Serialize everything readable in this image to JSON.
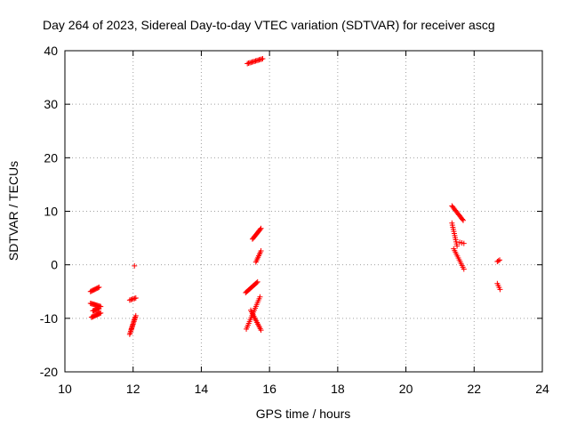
{
  "chart_data": {
    "type": "scatter",
    "title": "Day 264 of 2023, Sidereal Day-to-day VTEC variation (SDTVAR) for receiver ascg",
    "xlabel": "GPS time / hours",
    "ylabel": "SDTVAR / TECUs",
    "xlim": [
      10,
      24
    ],
    "ylim": [
      -20,
      40
    ],
    "xticks": [
      10,
      12,
      14,
      16,
      18,
      20,
      22,
      24
    ],
    "yticks": [
      -20,
      -10,
      0,
      10,
      20,
      30,
      40
    ],
    "grid": true,
    "marker": "+",
    "color": "#ff0000",
    "series": [
      {
        "name": "SDTVAR",
        "segments": [
          {
            "x0": 10.75,
            "x1": 11.0,
            "y0": -5.0,
            "y1": -4.2,
            "n": 10
          },
          {
            "x0": 10.75,
            "x1": 11.05,
            "y0": -7.2,
            "y1": -7.8,
            "n": 12
          },
          {
            "x0": 10.78,
            "x1": 11.05,
            "y0": -9.8,
            "y1": -9.0,
            "n": 12
          },
          {
            "x0": 10.82,
            "x1": 11.0,
            "y0": -8.6,
            "y1": -8.2,
            "n": 8
          },
          {
            "x0": 11.9,
            "x1": 12.08,
            "y0": -6.6,
            "y1": -6.2,
            "n": 6
          },
          {
            "x0": 11.9,
            "x1": 12.08,
            "y0": -13.0,
            "y1": -9.5,
            "n": 14
          },
          {
            "x0": 11.95,
            "x1": 12.05,
            "y0": -12.0,
            "y1": -10.0,
            "n": 8
          },
          {
            "x0": 12.04,
            "x1": 12.04,
            "y0": -0.2,
            "y1": -0.2,
            "n": 1
          },
          {
            "x0": 15.35,
            "x1": 15.8,
            "y0": 37.6,
            "y1": 38.5,
            "n": 14
          },
          {
            "x0": 15.5,
            "x1": 15.75,
            "y0": 4.8,
            "y1": 6.8,
            "n": 12
          },
          {
            "x0": 15.6,
            "x1": 15.75,
            "y0": 0.5,
            "y1": 2.6,
            "n": 8
          },
          {
            "x0": 15.3,
            "x1": 15.65,
            "y0": -5.2,
            "y1": -3.2,
            "n": 14
          },
          {
            "x0": 15.32,
            "x1": 15.72,
            "y0": -12.0,
            "y1": -6.0,
            "n": 18
          },
          {
            "x0": 15.45,
            "x1": 15.75,
            "y0": -8.5,
            "y1": -12.2,
            "n": 14
          },
          {
            "x0": 21.35,
            "x1": 21.68,
            "y0": 11.0,
            "y1": 8.3,
            "n": 14
          },
          {
            "x0": 21.35,
            "x1": 21.5,
            "y0": 7.8,
            "y1": 3.5,
            "n": 12
          },
          {
            "x0": 21.4,
            "x1": 21.7,
            "y0": 3.0,
            "y1": -0.8,
            "n": 12
          },
          {
            "x0": 21.58,
            "x1": 21.7,
            "y0": 4.2,
            "y1": 4.0,
            "n": 3
          },
          {
            "x0": 22.68,
            "x1": 22.75,
            "y0": 0.6,
            "y1": 0.9,
            "n": 3
          },
          {
            "x0": 22.68,
            "x1": 22.76,
            "y0": -3.5,
            "y1": -4.6,
            "n": 4
          }
        ]
      }
    ]
  }
}
